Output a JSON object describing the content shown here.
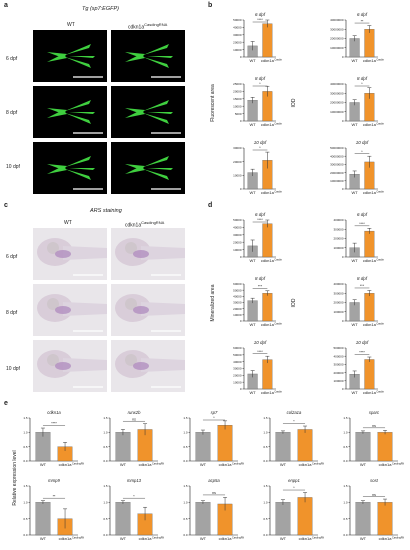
{
  "panels": {
    "a": {
      "letter": "a",
      "title": "Tg (sp7:EGFP)",
      "col_wt": "WT",
      "col_ko": "cdkn1a",
      "col_ko_sup": "CasdingRNA",
      "rows": [
        "6 dpf",
        "8 dpf",
        "10 dpf"
      ]
    },
    "b": {
      "letter": "b",
      "ylabel_left": "Fluorescent area",
      "ylabel_right": "IOD",
      "xlabels": [
        "WT",
        "cdkn1a"
      ],
      "x_sup": "CasdingRNA"
    },
    "c": {
      "letter": "c",
      "title": "ARS staining",
      "col_wt": "WT",
      "col_ko": "cdkn1a",
      "col_ko_sup": "CasdingRNA",
      "rows": [
        "6 dpf",
        "8 dpf",
        "10 dpf"
      ]
    },
    "d": {
      "letter": "d",
      "ylabel_left": "Mineralized area",
      "ylabel_right": "IOD",
      "xlabels": [
        "WT",
        "cdkn1a"
      ],
      "x_sup": "CasdingRNA"
    },
    "e": {
      "letter": "e",
      "ylabel": "Relative expression level",
      "xlabels": [
        "WT",
        "cdkn1a"
      ],
      "x_sup": "CasdingRNA"
    }
  },
  "colors": {
    "wt": "#a3a3a3",
    "ko": "#f0932b"
  },
  "chart_data": [
    {
      "type": "bar",
      "id": "b-area-6",
      "title": "6 dpf",
      "categories": [
        "WT",
        "cdkn1a"
      ],
      "values": [
        15000,
        45000
      ],
      "errors": [
        6000,
        5000
      ],
      "ylim": [
        0,
        50000
      ],
      "yticks": [
        "0",
        "10000",
        "20000",
        "30000",
        "40000",
        "50000"
      ],
      "sig": "****"
    },
    {
      "type": "bar",
      "id": "b-iod-6",
      "title": "6 dpf",
      "categories": [
        "WT",
        "cdkn1a"
      ],
      "values": [
        20000000,
        30000000
      ],
      "errors": [
        3000000,
        4000000
      ],
      "ylim": [
        0,
        40000000
      ],
      "yticks": [
        "0",
        "10000000",
        "20000000",
        "30000000",
        "40000000"
      ],
      "sig": "**"
    },
    {
      "type": "bar",
      "id": "b-area-8",
      "title": "8 dpf",
      "categories": [
        "WT",
        "cdkn1a"
      ],
      "values": [
        14000,
        20000
      ],
      "errors": [
        2000,
        3500
      ],
      "ylim": [
        0,
        25000
      ],
      "yticks": [
        "0",
        "5000",
        "10000",
        "15000",
        "20000",
        "25000"
      ],
      "sig": "*"
    },
    {
      "type": "bar",
      "id": "b-iod-8",
      "title": "8 dpf",
      "categories": [
        "WT",
        "cdkn1a"
      ],
      "values": [
        20000000,
        30000000
      ],
      "errors": [
        3000000,
        6000000
      ],
      "ylim": [
        0,
        40000000
      ],
      "yticks": [
        "0",
        "10000000",
        "20000000",
        "30000000",
        "40000000"
      ],
      "sig": "*"
    },
    {
      "type": "bar",
      "id": "b-area-10",
      "title": "10 dpf",
      "categories": [
        "WT",
        "cdkn1a"
      ],
      "values": [
        12000,
        21000
      ],
      "errors": [
        2500,
        6000
      ],
      "ylim": [
        0,
        30000
      ],
      "yticks": [
        "0",
        "10000",
        "20000",
        "30000"
      ],
      "sig": "*"
    },
    {
      "type": "bar",
      "id": "b-iod-10",
      "title": "10 dpf",
      "categories": [
        "WT",
        "cdkn1a"
      ],
      "values": [
        18000000,
        33000000
      ],
      "errors": [
        4000000,
        7000000
      ],
      "ylim": [
        0,
        50000000
      ],
      "yticks": [
        "0",
        "10000000",
        "20000000",
        "30000000",
        "40000000",
        "50000000"
      ],
      "sig": "*"
    },
    {
      "type": "bar",
      "id": "d-area-6",
      "title": "6 dpf",
      "categories": [
        "WT",
        "cdkn1a"
      ],
      "values": [
        15000,
        45000
      ],
      "errors": [
        8000,
        5000
      ],
      "ylim": [
        0,
        50000
      ],
      "yticks": [
        "0",
        "10000",
        "20000",
        "30000",
        "40000",
        "50000"
      ],
      "sig": "****"
    },
    {
      "type": "bar",
      "id": "d-iod-6",
      "title": "6 dpf",
      "categories": [
        "WT",
        "cdkn1a"
      ],
      "values": [
        100000,
        280000
      ],
      "errors": [
        50000,
        30000
      ],
      "ylim": [
        0,
        400000
      ],
      "yticks": [
        "0",
        "100000",
        "200000",
        "300000",
        "400000"
      ],
      "sig": "****"
    },
    {
      "type": "bar",
      "id": "d-area-8",
      "title": "8 dpf",
      "categories": [
        "WT",
        "cdkn1a"
      ],
      "values": [
        33000,
        45000
      ],
      "errors": [
        4000,
        4000
      ],
      "ylim": [
        0,
        60000
      ],
      "yticks": [
        "0",
        "10000",
        "20000",
        "30000",
        "40000",
        "50000",
        "60000"
      ],
      "sig": "***"
    },
    {
      "type": "bar",
      "id": "d-iod-8",
      "title": "8 dpf",
      "categories": [
        "WT",
        "cdkn1a"
      ],
      "values": [
        200000,
        300000
      ],
      "errors": [
        30000,
        30000
      ],
      "ylim": [
        0,
        400000
      ],
      "yticks": [
        "0",
        "100000",
        "200000",
        "300000",
        "400000"
      ],
      "sig": "***"
    },
    {
      "type": "bar",
      "id": "d-area-10",
      "title": "10 dpf",
      "categories": [
        "WT",
        "cdkn1a"
      ],
      "values": [
        22000,
        43000
      ],
      "errors": [
        5000,
        5000
      ],
      "ylim": [
        0,
        60000
      ],
      "yticks": [
        "0",
        "10000",
        "20000",
        "30000",
        "40000",
        "50000",
        "60000"
      ],
      "sig": "****"
    },
    {
      "type": "bar",
      "id": "d-iod-10",
      "title": "10 dpf",
      "categories": [
        "WT",
        "cdkn1a"
      ],
      "values": [
        180000,
        360000
      ],
      "errors": [
        40000,
        30000
      ],
      "ylim": [
        0,
        500000
      ],
      "yticks": [
        "0",
        "100000",
        "200000",
        "300000",
        "400000",
        "500000"
      ],
      "sig": "****"
    },
    {
      "type": "bar",
      "id": "e-cdkn1a",
      "title": "cdkn1a",
      "categories": [
        "WT",
        "cdkn1a"
      ],
      "values": [
        1.0,
        0.5
      ],
      "errors": [
        0.15,
        0.15
      ],
      "ylim": [
        0,
        1.5
      ],
      "yticks": [
        "0.0",
        "0.5",
        "1.0",
        "1.5"
      ],
      "sig": "****"
    },
    {
      "type": "bar",
      "id": "e-runx2b",
      "title": "runx2b",
      "categories": [
        "WT",
        "cdkn1a"
      ],
      "values": [
        1.0,
        1.1
      ],
      "errors": [
        0.1,
        0.2
      ],
      "ylim": [
        0,
        1.5
      ],
      "yticks": [
        "0.0",
        "0.5",
        "1.0",
        "1.5"
      ],
      "sig": "ns"
    },
    {
      "type": "bar",
      "id": "e-sp7",
      "title": "sp7",
      "categories": [
        "WT",
        "cdkn1a"
      ],
      "values": [
        1.0,
        1.25
      ],
      "errors": [
        0.08,
        0.15
      ],
      "ylim": [
        0,
        1.5
      ],
      "yticks": [
        "0.0",
        "0.5",
        "1.0",
        "1.5"
      ],
      "sig": "*"
    },
    {
      "type": "bar",
      "id": "e-col2a1a",
      "title": "col2a1a",
      "categories": [
        "WT",
        "cdkn1a"
      ],
      "values": [
        1.0,
        1.1
      ],
      "errors": [
        0.05,
        0.12
      ],
      "ylim": [
        0,
        1.5
      ],
      "yticks": [
        "0.0",
        "0.5",
        "1.0",
        "1.5"
      ],
      "sig": "*"
    },
    {
      "type": "bar",
      "id": "e-sparc",
      "title": "sparc",
      "categories": [
        "WT",
        "cdkn1a"
      ],
      "values": [
        1.0,
        1.0
      ],
      "errors": [
        0.05,
        0.07
      ],
      "ylim": [
        0,
        1.5
      ],
      "yticks": [
        "0.0",
        "0.5",
        "1.0",
        "1.5"
      ],
      "sig": "ns"
    },
    {
      "type": "bar",
      "id": "e-mmp9",
      "title": "mmp9",
      "categories": [
        "WT",
        "cdkn1a"
      ],
      "values": [
        1.0,
        0.5
      ],
      "errors": [
        0.05,
        0.3
      ],
      "ylim": [
        0,
        1.5
      ],
      "yticks": [
        "0.0",
        "0.5",
        "1.0",
        "1.5"
      ],
      "sig": "**"
    },
    {
      "type": "bar",
      "id": "e-mmp13",
      "title": "mmp13",
      "categories": [
        "WT",
        "cdkn1a"
      ],
      "values": [
        1.0,
        0.65
      ],
      "errors": [
        0.05,
        0.2
      ],
      "ylim": [
        0,
        1.5
      ],
      "yticks": [
        "0.0",
        "0.5",
        "1.0",
        "1.5"
      ],
      "sig": "*"
    },
    {
      "type": "bar",
      "id": "e-acp5a",
      "title": "acp5a",
      "categories": [
        "WT",
        "cdkn1a"
      ],
      "values": [
        1.0,
        0.95
      ],
      "errors": [
        0.05,
        0.2
      ],
      "ylim": [
        0,
        1.5
      ],
      "yticks": [
        "0.0",
        "0.5",
        "1.0",
        "1.5"
      ],
      "sig": "ns"
    },
    {
      "type": "bar",
      "id": "e-enpp1",
      "title": "enpp1",
      "categories": [
        "WT",
        "cdkn1a"
      ],
      "values": [
        1.0,
        1.15
      ],
      "errors": [
        0.08,
        0.15
      ],
      "ylim": [
        0,
        1.5
      ],
      "yticks": [
        "0.0",
        "0.5",
        "1.0",
        "1.5"
      ],
      "sig": "*"
    },
    {
      "type": "bar",
      "id": "e-sost",
      "title": "sost",
      "categories": [
        "WT",
        "cdkn1a"
      ],
      "values": [
        1.0,
        1.0
      ],
      "errors": [
        0.05,
        0.1
      ],
      "ylim": [
        0,
        1.5
      ],
      "yticks": [
        "0.0",
        "0.5",
        "1.0",
        "1.5"
      ],
      "sig": "ns"
    }
  ]
}
